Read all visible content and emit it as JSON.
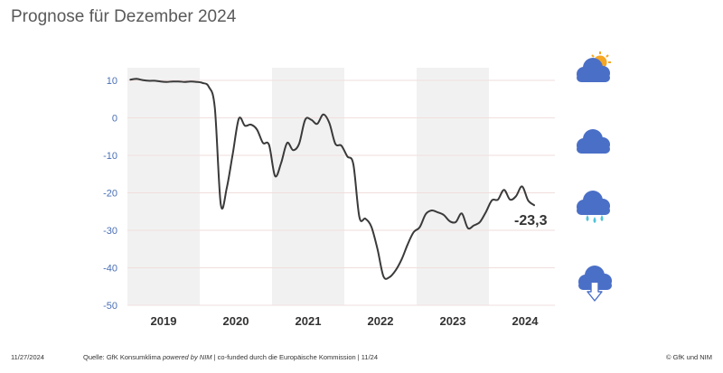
{
  "title": "Prognose für Dezember 2024",
  "footer": {
    "date": "11/27/2024",
    "source_prefix": "Quelle: GfK Konsumklima ",
    "source_powered": "powered by NIM",
    "source_suffix": " | co-funded durch die Europäische Kommission | 11/24",
    "copyright": "© GfK und NIM"
  },
  "colors": {
    "line": "#3a3a3a",
    "band": "#f1f1f1",
    "grid": "#f2dede",
    "tick_text": "#4a6fb5",
    "year_text": "#333333",
    "cloud": "#4a6fc7",
    "sun": "#f5a623",
    "rain": "#4fc3d9"
  },
  "icons": [
    "sun-cloud-icon",
    "cloud-icon",
    "rain-cloud-icon",
    "thunderstorm-cloud-icon"
  ],
  "chart_data": {
    "type": "line",
    "title": "Prognose für Dezember 2024",
    "xlabel": "",
    "ylabel": "",
    "ylim": [
      -50,
      10
    ],
    "yticks": [
      10,
      0,
      -10,
      -20,
      -30,
      -40,
      -50
    ],
    "years": [
      "2019",
      "2020",
      "2021",
      "2022",
      "2023",
      "2024"
    ],
    "shaded_years": [
      "2019",
      "2021",
      "2023"
    ],
    "x_start": "2019-01",
    "x_end": "2024-12",
    "last_value_label": "-23,3",
    "series": [
      {
        "values": [
          10.2,
          10.4,
          10.1,
          9.9,
          9.9,
          9.7,
          9.6,
          9.7,
          9.7,
          9.6,
          9.7,
          9.6,
          9.3,
          8.3,
          2.7,
          -23.1,
          -18.6,
          -9.4,
          -0.2,
          -2.1,
          -1.8,
          -3.1,
          -6.7,
          -7.2,
          -15.5,
          -12.1,
          -6.7,
          -8.6,
          -6.9,
          -0.5,
          -0.5,
          -1.6,
          0.9,
          -1.3,
          -6.9,
          -7.4,
          -10.3,
          -12.4,
          -26.5,
          -26.9,
          -29.1,
          -35.0,
          -42.3,
          -42.5,
          -40.7,
          -37.8,
          -33.8,
          -30.5,
          -29.2,
          -25.7,
          -24.7,
          -25.2,
          -25.9,
          -27.6,
          -27.8,
          -25.5,
          -29.4,
          -28.7,
          -27.8,
          -25.1,
          -22.0,
          -21.8,
          -19.2,
          -21.8,
          -20.9,
          -18.3,
          -22.0,
          -23.3
        ]
      }
    ]
  }
}
